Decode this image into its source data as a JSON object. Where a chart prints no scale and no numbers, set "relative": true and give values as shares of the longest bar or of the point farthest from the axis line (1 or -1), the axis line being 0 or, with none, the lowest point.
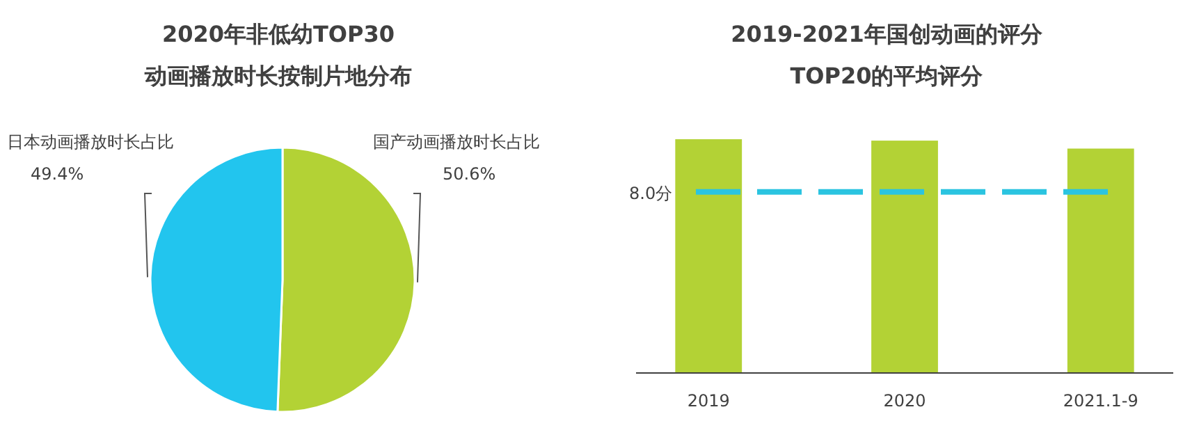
{
  "chart_data": [
    {
      "type": "pie",
      "title": "2020年非低幼TOP30\n动画播放时长按制片地分布",
      "categories": [
        "国产动画播放时长占比",
        "日本动画播放时长占比"
      ],
      "values": [
        50.6,
        49.4
      ],
      "colors": [
        "#b3d235",
        "#22c5ee"
      ],
      "value_labels": [
        "50.6%",
        "49.4%"
      ]
    },
    {
      "type": "bar",
      "title": "2019-2021年国创动画的评分\nTOP20的平均评分",
      "categories": [
        "2019",
        "2020",
        "2021.1-9"
      ],
      "values": [
        1,
        0.994,
        0.96
      ],
      "color": "#b3d235",
      "relative": true,
      "ref_lines": [
        {
          "axis": "y",
          "value": 0.775,
          "label": "8.0分",
          "color": "#2bc4e0",
          "line_style": "dashed"
        }
      ]
    }
  ]
}
